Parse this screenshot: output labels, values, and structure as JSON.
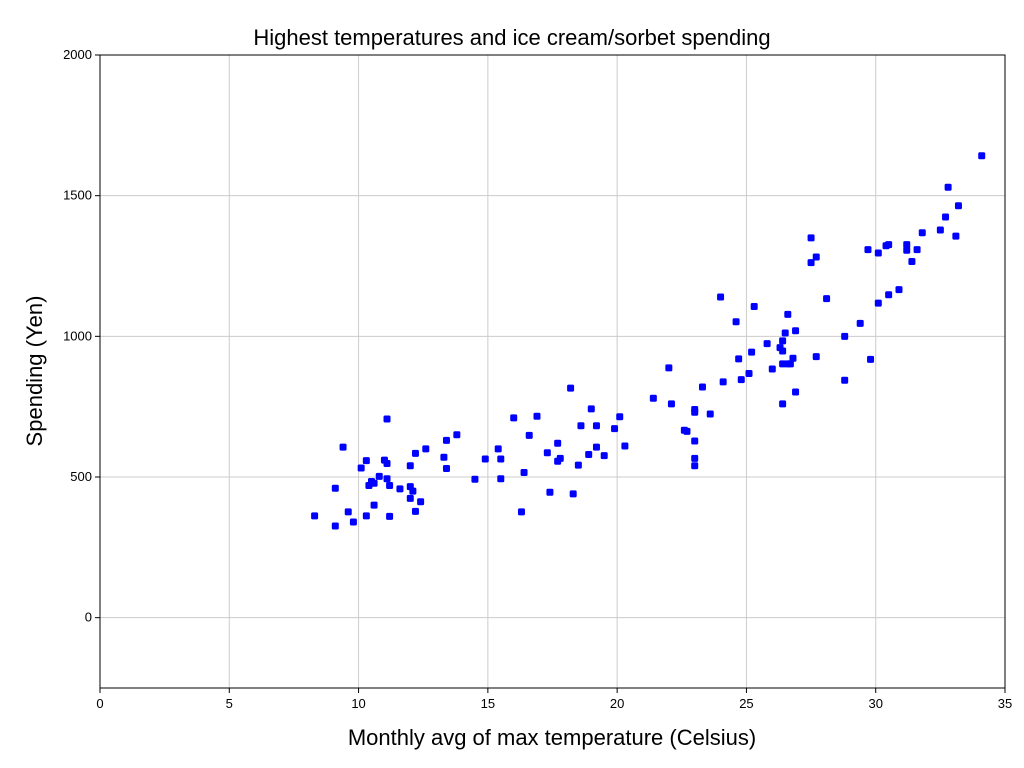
{
  "chart_data": {
    "type": "scatter",
    "title": "Highest temperatures and ice cream/sorbet spending",
    "xlabel": "Monthly avg of max temperature (Celsius)",
    "ylabel": "Spending (Yen)",
    "xlim": [
      0,
      35
    ],
    "ylim": [
      -250,
      2000
    ],
    "xticks": [
      0,
      5,
      10,
      15,
      20,
      25,
      30,
      35
    ],
    "yticks": [
      0,
      500,
      1000,
      1500,
      2000
    ],
    "grid": true,
    "legend": "none",
    "marker_color": "#0000ff",
    "points": [
      [
        8.3,
        362
      ],
      [
        9.1,
        460
      ],
      [
        9.1,
        326
      ],
      [
        9.4,
        606
      ],
      [
        9.6,
        376
      ],
      [
        9.8,
        340
      ],
      [
        10.1,
        532
      ],
      [
        10.3,
        558
      ],
      [
        10.3,
        362
      ],
      [
        10.4,
        470
      ],
      [
        10.5,
        484
      ],
      [
        10.6,
        400
      ],
      [
        10.6,
        478
      ],
      [
        10.8,
        502
      ],
      [
        11.0,
        560
      ],
      [
        11.1,
        548
      ],
      [
        11.1,
        706
      ],
      [
        11.1,
        494
      ],
      [
        11.2,
        470
      ],
      [
        11.2,
        360
      ],
      [
        11.6,
        458
      ],
      [
        12.0,
        540
      ],
      [
        12.0,
        466
      ],
      [
        12.0,
        424
      ],
      [
        12.1,
        450
      ],
      [
        12.2,
        378
      ],
      [
        12.2,
        584
      ],
      [
        12.4,
        412
      ],
      [
        12.6,
        600
      ],
      [
        13.3,
        570
      ],
      [
        13.4,
        530
      ],
      [
        13.4,
        630
      ],
      [
        13.8,
        650
      ],
      [
        14.5,
        492
      ],
      [
        14.9,
        564
      ],
      [
        15.4,
        600
      ],
      [
        15.5,
        564
      ],
      [
        15.5,
        494
      ],
      [
        16.0,
        710
      ],
      [
        16.3,
        376
      ],
      [
        16.4,
        516
      ],
      [
        16.6,
        648
      ],
      [
        16.9,
        716
      ],
      [
        17.3,
        586
      ],
      [
        17.4,
        446
      ],
      [
        17.7,
        556
      ],
      [
        17.7,
        620
      ],
      [
        17.8,
        566
      ],
      [
        18.2,
        816
      ],
      [
        18.3,
        440
      ],
      [
        18.5,
        542
      ],
      [
        18.6,
        682
      ],
      [
        18.9,
        580
      ],
      [
        19.0,
        742
      ],
      [
        19.2,
        682
      ],
      [
        19.2,
        606
      ],
      [
        19.5,
        576
      ],
      [
        19.9,
        672
      ],
      [
        20.1,
        714
      ],
      [
        20.3,
        610
      ],
      [
        21.4,
        780
      ],
      [
        22.0,
        888
      ],
      [
        22.1,
        760
      ],
      [
        22.6,
        666
      ],
      [
        22.7,
        662
      ],
      [
        23.0,
        740
      ],
      [
        23.0,
        730
      ],
      [
        23.0,
        628
      ],
      [
        23.0,
        566
      ],
      [
        23.0,
        540
      ],
      [
        23.3,
        820
      ],
      [
        23.6,
        724
      ],
      [
        24.0,
        1140
      ],
      [
        24.1,
        838
      ],
      [
        24.6,
        1052
      ],
      [
        24.7,
        920
      ],
      [
        24.8,
        846
      ],
      [
        25.1,
        868
      ],
      [
        25.2,
        944
      ],
      [
        25.3,
        1106
      ],
      [
        25.8,
        974
      ],
      [
        26.0,
        884
      ],
      [
        26.3,
        960
      ],
      [
        26.4,
        984
      ],
      [
        26.4,
        948
      ],
      [
        26.4,
        902
      ],
      [
        26.4,
        760
      ],
      [
        26.5,
        1012
      ],
      [
        26.6,
        902
      ],
      [
        26.6,
        1078
      ],
      [
        26.7,
        902
      ],
      [
        26.8,
        922
      ],
      [
        26.9,
        1020
      ],
      [
        26.9,
        802
      ],
      [
        27.5,
        1350
      ],
      [
        27.5,
        1262
      ],
      [
        27.7,
        1282
      ],
      [
        27.7,
        928
      ],
      [
        28.1,
        1134
      ],
      [
        28.8,
        1000
      ],
      [
        28.8,
        844
      ],
      [
        29.4,
        1046
      ],
      [
        29.7,
        1308
      ],
      [
        29.8,
        918
      ],
      [
        30.1,
        1296
      ],
      [
        30.1,
        1118
      ],
      [
        30.4,
        1322
      ],
      [
        30.5,
        1326
      ],
      [
        30.5,
        1148
      ],
      [
        30.9,
        1166
      ],
      [
        31.2,
        1326
      ],
      [
        31.2,
        1306
      ],
      [
        31.4,
        1266
      ],
      [
        31.6,
        1308
      ],
      [
        31.8,
        1368
      ],
      [
        32.5,
        1378
      ],
      [
        32.7,
        1424
      ],
      [
        32.8,
        1530
      ],
      [
        33.1,
        1356
      ],
      [
        33.2,
        1464
      ],
      [
        34.1,
        1642
      ]
    ]
  }
}
